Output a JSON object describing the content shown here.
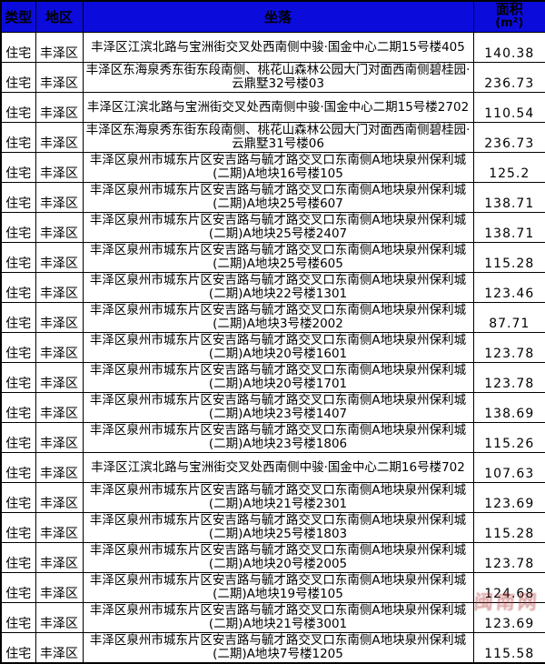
{
  "header": {
    "type": "类型",
    "district": "地区",
    "location": "坐落",
    "area_line1": "面积",
    "area_line2": "(m²)"
  },
  "rows": [
    {
      "type": "住宅",
      "district": "丰泽区",
      "location": "丰泽区江滨北路与宝洲街交叉处西南侧中骏·国金中心二期15号楼405",
      "area": "140.38"
    },
    {
      "type": "住宅",
      "district": "丰泽区",
      "location": "丰泽区东海泉秀东街东段南侧、桃花山森林公园大门对面西南侧碧桂园·云鼎墅32号楼03",
      "area": "236.73"
    },
    {
      "type": "住宅",
      "district": "丰泽区",
      "location": "丰泽区江滨北路与宝洲街交叉处西南侧中骏·国金中心二期15号楼2702",
      "area": "110.54"
    },
    {
      "type": "住宅",
      "district": "丰泽区",
      "location": "丰泽区东海泉秀东街东段南侧、桃花山森林公园大门对面西南侧碧桂园·云鼎墅31号楼06",
      "area": "236.73"
    },
    {
      "type": "住宅",
      "district": "丰泽区",
      "location": "丰泽区泉州市城东片区安吉路与毓才路交叉口东南侧A地块泉州保利城(二期)A地块16号楼105",
      "area": "125.2"
    },
    {
      "type": "住宅",
      "district": "丰泽区",
      "location": "丰泽区泉州市城东片区安吉路与毓才路交叉口东南侧A地块泉州保利城(二期)A地块25号楼607",
      "area": "138.71"
    },
    {
      "type": "住宅",
      "district": "丰泽区",
      "location": "丰泽区泉州市城东片区安吉路与毓才路交叉口东南侧A地块泉州保利城(二期)A地块25号楼2407",
      "area": "138.71"
    },
    {
      "type": "住宅",
      "district": "丰泽区",
      "location": "丰泽区泉州市城东片区安吉路与毓才路交叉口东南侧A地块泉州保利城(二期)A地块25号楼605",
      "area": "115.28"
    },
    {
      "type": "住宅",
      "district": "丰泽区",
      "location": "丰泽区泉州市城东片区安吉路与毓才路交叉口东南侧A地块泉州保利城(二期)A地块22号楼1301",
      "area": "123.46"
    },
    {
      "type": "住宅",
      "district": "丰泽区",
      "location": "丰泽区泉州市城东片区安吉路与毓才路交叉口东南侧A地块泉州保利城(二期)A地块3号楼2002",
      "area": "87.71"
    },
    {
      "type": "住宅",
      "district": "丰泽区",
      "location": "丰泽区泉州市城东片区安吉路与毓才路交叉口东南侧A地块泉州保利城(二期)A地块20号楼1601",
      "area": "123.78"
    },
    {
      "type": "住宅",
      "district": "丰泽区",
      "location": "丰泽区泉州市城东片区安吉路与毓才路交叉口东南侧A地块泉州保利城(二期)A地块20号楼1701",
      "area": "123.78"
    },
    {
      "type": "住宅",
      "district": "丰泽区",
      "location": "丰泽区泉州市城东片区安吉路与毓才路交叉口东南侧A地块泉州保利城(二期)A地块23号楼1407",
      "area": "138.69"
    },
    {
      "type": "住宅",
      "district": "丰泽区",
      "location": "丰泽区泉州市城东片区安吉路与毓才路交叉口东南侧A地块泉州保利城(二期)A地块23号楼1806",
      "area": "115.26"
    },
    {
      "type": "住宅",
      "district": "丰泽区",
      "location": "丰泽区江滨北路与宝洲街交叉处西南侧中骏·国金中心二期16号楼702",
      "area": "107.63"
    },
    {
      "type": "住宅",
      "district": "丰泽区",
      "location": "丰泽区泉州市城东片区安吉路与毓才路交叉口东南侧A地块泉州保利城(二期)A地块21号楼2301",
      "area": "123.69"
    },
    {
      "type": "住宅",
      "district": "丰泽区",
      "location": "丰泽区泉州市城东片区安吉路与毓才路交叉口东南侧A地块泉州保利城(二期)A地块25号楼1803",
      "area": "115.28"
    },
    {
      "type": "住宅",
      "district": "丰泽区",
      "location": "丰泽区泉州市城东片区安吉路与毓才路交叉口东南侧A地块泉州保利城(二期)A地块20号楼2005",
      "area": "123.78"
    },
    {
      "type": "住宅",
      "district": "丰泽区",
      "location": "丰泽区泉州市城东片区安吉路与毓才路交叉口东南侧A地块泉州保利城(二期)A地块19号楼105",
      "area": "124.68"
    },
    {
      "type": "住宅",
      "district": "丰泽区",
      "location": "丰泽区泉州市城东片区安吉路与毓才路交叉口东南侧A地块泉州保利城(二期)A地块21号楼3001",
      "area": "123.69"
    },
    {
      "type": "住宅",
      "district": "丰泽区",
      "location": "丰泽区泉州市城东片区安吉路与毓才路交叉口东南侧A地块泉州保利城(二期)A地块7号楼1205",
      "area": "115.58"
    }
  ],
  "watermark": {
    "text": "闽南网",
    "color": "#b03434"
  },
  "colors": {
    "header_bg": "#0b0cdb",
    "border": "#000000",
    "text": "#000000"
  }
}
